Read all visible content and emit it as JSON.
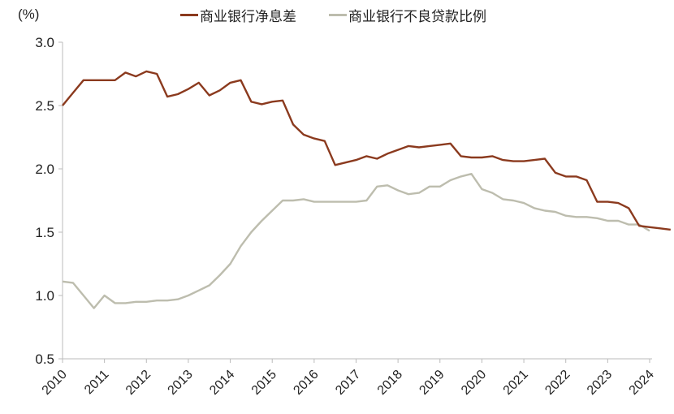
{
  "chart_data": {
    "type": "line",
    "title": "",
    "xlabel": "",
    "ylabel": "(%)",
    "ylim": [
      0.5,
      3.0
    ],
    "yticks": [
      "0.5",
      "1.0",
      "1.5",
      "2.0",
      "2.5",
      "3.0"
    ],
    "xticks": [
      "2010",
      "2011",
      "2012",
      "2013",
      "2014",
      "2015",
      "2016",
      "2017",
      "2018",
      "2019",
      "2020",
      "2021",
      "2022",
      "2023",
      "2024"
    ],
    "grid": false,
    "legend_position": "top",
    "frequency": "quarterly",
    "series": [
      {
        "name": "商业银行净息差",
        "color": "#8B3A1E",
        "values": [
          2.5,
          2.6,
          2.7,
          2.7,
          2.7,
          2.7,
          2.76,
          2.73,
          2.77,
          2.75,
          2.57,
          2.59,
          2.63,
          2.68,
          2.58,
          2.62,
          2.68,
          2.7,
          2.53,
          2.51,
          2.53,
          2.54,
          2.35,
          2.27,
          2.24,
          2.22,
          2.03,
          2.05,
          2.07,
          2.1,
          2.08,
          2.12,
          2.15,
          2.18,
          2.17,
          2.18,
          2.19,
          2.2,
          2.1,
          2.09,
          2.09,
          2.1,
          2.07,
          2.06,
          2.06,
          2.07,
          2.08,
          1.97,
          1.94,
          1.94,
          1.91,
          1.74,
          1.74,
          1.73,
          1.69,
          1.55,
          1.54,
          1.53,
          1.52
        ]
      },
      {
        "name": "商业银行不良贷款比例",
        "color": "#BDBDAE",
        "values": [
          1.11,
          1.1,
          1.0,
          0.9,
          1.0,
          0.94,
          0.94,
          0.95,
          0.95,
          0.96,
          0.96,
          0.97,
          1.0,
          1.04,
          1.08,
          1.16,
          1.25,
          1.39,
          1.5,
          1.59,
          1.67,
          1.75,
          1.75,
          1.76,
          1.74,
          1.74,
          1.74,
          1.74,
          1.74,
          1.75,
          1.86,
          1.87,
          1.83,
          1.8,
          1.81,
          1.86,
          1.86,
          1.91,
          1.94,
          1.96,
          1.84,
          1.81,
          1.76,
          1.75,
          1.73,
          1.69,
          1.67,
          1.66,
          1.63,
          1.62,
          1.62,
          1.61,
          1.59,
          1.59,
          1.56,
          1.56,
          1.51
        ]
      }
    ]
  },
  "labels": {
    "unit": "(%)",
    "legend_1": "商业银行净息差",
    "legend_2": "商业银行不良贷款比例"
  }
}
